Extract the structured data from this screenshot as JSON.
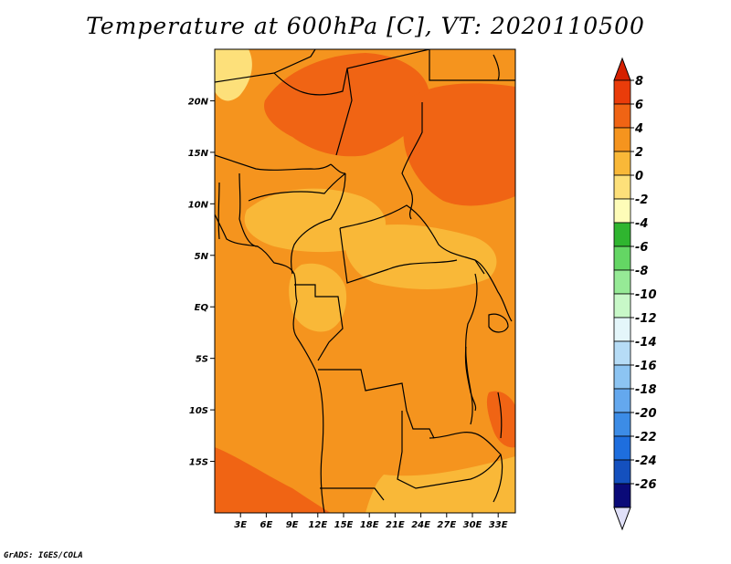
{
  "title": "Temperature at 600hPa [C], VT: 2020110500",
  "footer": "GrADS: IGES/COLA",
  "map": {
    "lon_range": [
      0,
      35
    ],
    "lat_range": [
      -20,
      25
    ],
    "lat_ticks": [
      {
        "value": 20,
        "label": "20N"
      },
      {
        "value": 15,
        "label": "15N"
      },
      {
        "value": 10,
        "label": "10N"
      },
      {
        "value": 5,
        "label": "5N"
      },
      {
        "value": 0,
        "label": "EQ"
      },
      {
        "value": -5,
        "label": "5S"
      },
      {
        "value": -10,
        "label": "10S"
      },
      {
        "value": -15,
        "label": "15S"
      }
    ],
    "lon_ticks": [
      {
        "value": 3,
        "label": "3E"
      },
      {
        "value": 6,
        "label": "6E"
      },
      {
        "value": 9,
        "label": "9E"
      },
      {
        "value": 12,
        "label": "12E"
      },
      {
        "value": 15,
        "label": "15E"
      },
      {
        "value": 18,
        "label": "18E"
      },
      {
        "value": 21,
        "label": "21E"
      },
      {
        "value": 24,
        "label": "24E"
      },
      {
        "value": 27,
        "label": "27E"
      },
      {
        "value": 30,
        "label": "30E"
      },
      {
        "value": 33,
        "label": "33E"
      }
    ]
  },
  "colorbar": {
    "levels": [
      "8",
      "6",
      "4",
      "2",
      "0",
      "-2",
      "-4",
      "-6",
      "-8",
      "-10",
      "-12",
      "-14",
      "-16",
      "-18",
      "-20",
      "-22",
      "-24",
      "-26"
    ],
    "top_color": "#d52000",
    "bottom_color": "#e0e0f8",
    "colors": [
      "#ea3c0a",
      "#f06414",
      "#f5941e",
      "#f9b838",
      "#fde07a",
      "#fefcb8",
      "#2fb52f",
      "#64d664",
      "#96ea96",
      "#c8f8c8",
      "#e4f6fa",
      "#b6dcf6",
      "#8cc4f2",
      "#64a8ee",
      "#3c8ce6",
      "#1e6ede",
      "#1450be",
      "#0a0a78"
    ]
  },
  "field_colors": {
    "c0": "#fde07a",
    "c2": "#f9b838",
    "c4": "#f5941e",
    "c6": "#f06414"
  }
}
